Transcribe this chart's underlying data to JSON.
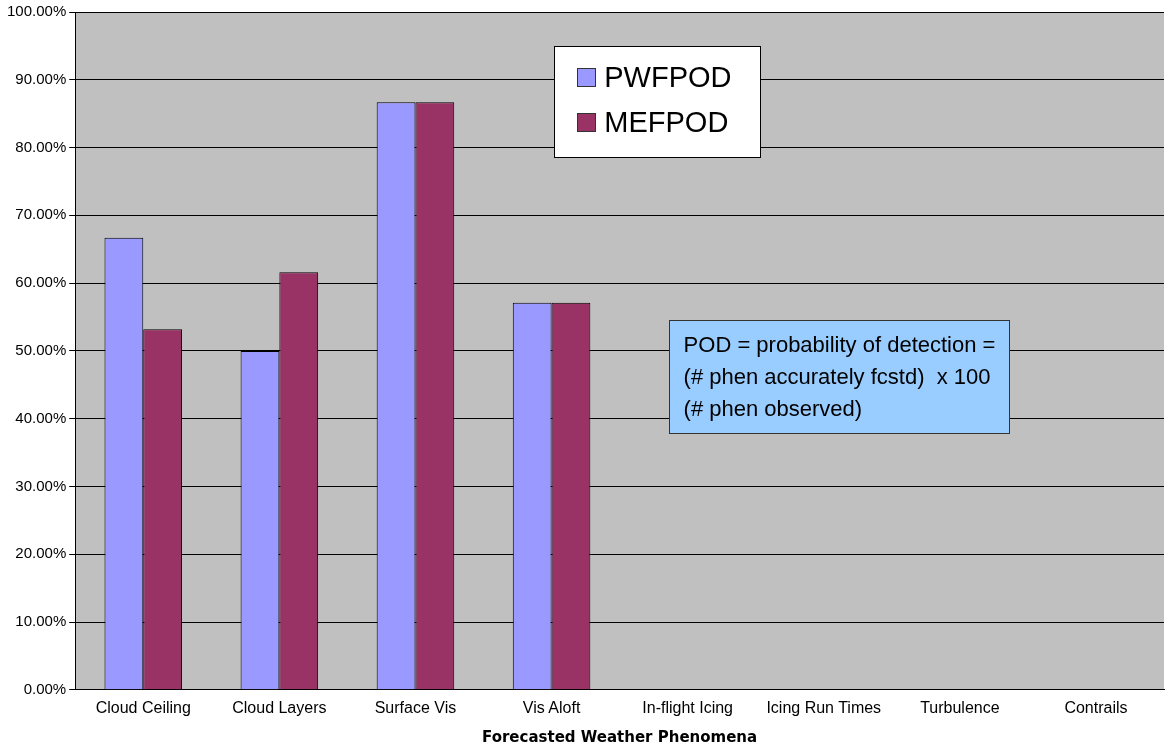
{
  "chart_data": {
    "type": "bar",
    "xlabel": "Forecasted Weather Phenomena",
    "categories": [
      "Cloud Ceiling",
      "Cloud Layers",
      "Surface Vis",
      "Vis Aloft",
      "In-flight Icing",
      "Icing Run Times",
      "Turbulence",
      "Contrails"
    ],
    "series": [
      {
        "name": "PWFPOD",
        "color": "#9999ff",
        "values": [
          66.7,
          50,
          86.7,
          57.1,
          0,
          0,
          0,
          0
        ]
      },
      {
        "name": "MEFPOD",
        "color": "#993366",
        "values": [
          53.2,
          61.6,
          86.7,
          57.1,
          0,
          0,
          0,
          0
        ]
      }
    ],
    "ylim": [
      0,
      100
    ],
    "yticks": [
      {
        "value": 0,
        "label": "0.00%"
      },
      {
        "value": 10,
        "label": "10.00%"
      },
      {
        "value": 20,
        "label": "20.00%"
      },
      {
        "value": 30,
        "label": "30.00%"
      },
      {
        "value": 40,
        "label": "40.00%"
      },
      {
        "value": 50,
        "label": "50.00%"
      },
      {
        "value": 60,
        "label": "60.00%"
      },
      {
        "value": 70,
        "label": "70.00%"
      },
      {
        "value": 80,
        "label": "80.00%"
      },
      {
        "value": 90,
        "label": "90.00%"
      },
      {
        "value": 100,
        "label": "100.00%"
      }
    ],
    "grid": "y",
    "legend": "top",
    "annotations": [
      "POD = probability of detection =\n(# phen accurately fcstd)  x 100\n(# phen observed)"
    ]
  }
}
